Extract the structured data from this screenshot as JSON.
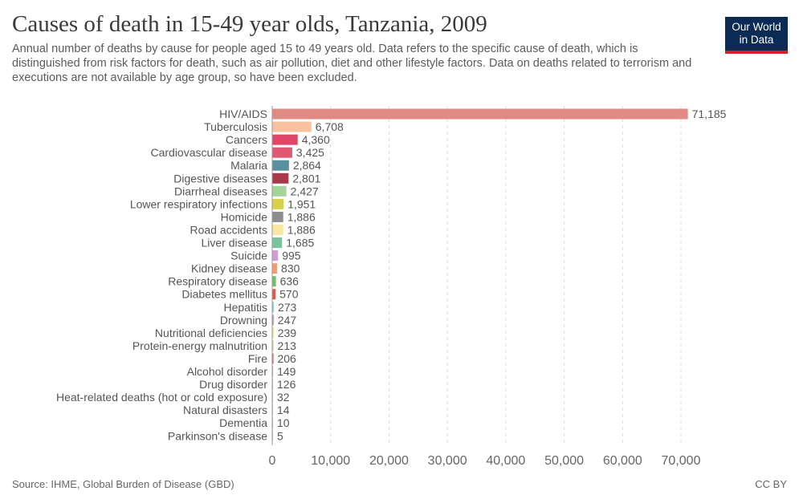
{
  "header": {
    "title": "Causes of death in 15-49 year olds, Tanzania, 2009",
    "subtitle": "Annual number of deaths by cause for people aged 15 to 49 years old. Data refers to the specific cause of death, which is distinguished from risk factors for death, such as air pollution, diet and other lifestyle factors. Data on deaths related to terrorism and executions are not available by age group, so have been excluded."
  },
  "logo": {
    "line1": "Our World",
    "line2": "in Data"
  },
  "footer": {
    "source": "Source: IHME, Global Burden of Disease (GBD)",
    "license": "CC BY"
  },
  "chart_data": {
    "type": "bar",
    "orientation": "horizontal",
    "categories": [
      "HIV/AIDS",
      "Tuberculosis",
      "Cancers",
      "Cardiovascular disease",
      "Malaria",
      "Digestive diseases",
      "Diarrheal diseases",
      "Lower respiratory infections",
      "Homicide",
      "Road accidents",
      "Liver disease",
      "Suicide",
      "Kidney disease",
      "Respiratory disease",
      "Diabetes mellitus",
      "Hepatitis",
      "Drowning",
      "Nutritional deficiencies",
      "Protein-energy malnutrition",
      "Fire",
      "Alcohol disorder",
      "Drug disorder",
      "Heat-related deaths (hot or cold exposure)",
      "Natural disasters",
      "Dementia",
      "Parkinson's disease"
    ],
    "values": [
      71185,
      6708,
      4360,
      3425,
      2864,
      2801,
      2427,
      1951,
      1886,
      1886,
      1685,
      995,
      830,
      636,
      570,
      273,
      247,
      239,
      213,
      206,
      149,
      126,
      32,
      14,
      10,
      5
    ],
    "value_labels": [
      "71,185",
      "6,708",
      "4,360",
      "3,425",
      "2,864",
      "2,801",
      "2,427",
      "1,951",
      "1,886",
      "1,886",
      "1,685",
      "995",
      "830",
      "636",
      "570",
      "273",
      "247",
      "239",
      "213",
      "206",
      "149",
      "126",
      "32",
      "14",
      "10",
      "5"
    ],
    "colors": [
      "#e08a83",
      "#f9c29e",
      "#e04767",
      "#e05872",
      "#5a8fa0",
      "#a8384b",
      "#a5d39b",
      "#d7d04b",
      "#8d8d8d",
      "#f9e8a0",
      "#7ac49c",
      "#d49bd4",
      "#f09c74",
      "#6fbf60",
      "#e05a4a",
      "#8fd3d8",
      "#c585c0",
      "#f4e07e",
      "#b8dc9c",
      "#e84a4a",
      "#8fbcd3",
      "#d8a7d8",
      "#c9c9c9",
      "#a0cbe0",
      "#c0b0d8",
      "#c0c0c0"
    ],
    "xlim": [
      0,
      70000
    ],
    "xticks": [
      0,
      10000,
      20000,
      30000,
      40000,
      50000,
      60000,
      70000
    ],
    "xtick_labels": [
      "0",
      "10,000",
      "20,000",
      "30,000",
      "40,000",
      "50,000",
      "60,000",
      "70,000"
    ],
    "grid": true,
    "xlabel": "",
    "ylabel": ""
  }
}
